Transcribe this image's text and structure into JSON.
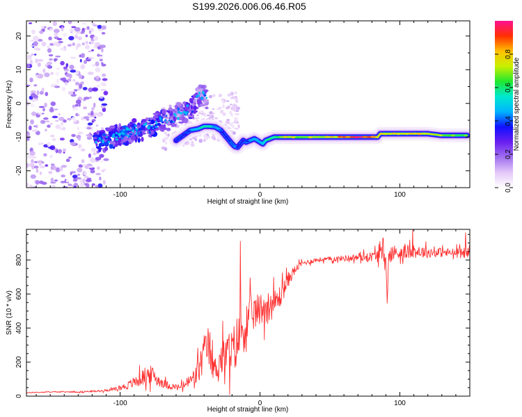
{
  "figure": {
    "title": "S199.2026.006.06.46.R05"
  },
  "chart_data": [
    {
      "type": "heatmap",
      "title": "S199.2026.006.06.46.R05",
      "xlabel": "Height of straight line (km)",
      "ylabel": "Frequency (Hz)",
      "xlim": [
        -167,
        150
      ],
      "ylim": [
        -25,
        24.5
      ],
      "x_ticks": [
        -100,
        0,
        100
      ],
      "y_ticks": [
        -20,
        -10,
        0,
        10,
        20
      ],
      "colorbar": {
        "label": "Normalized spectral amplitude",
        "range": [
          0,
          1
        ],
        "ticks": [
          0.0,
          0.2,
          0.4,
          0.6,
          0.8
        ],
        "colormap": [
          "#ffffff",
          "#e4c8f8",
          "#a070f0",
          "#6a1ff0",
          "#1010ff",
          "#00b4ff",
          "#00e8d0",
          "#20e830",
          "#c8f000",
          "#ffc000",
          "#ff3000",
          "#ff1090"
        ]
      },
      "ridge": {
        "x": [
          -60,
          -55,
          -50,
          -44,
          -40,
          -36,
          -32,
          -28,
          -25,
          -22,
          -20,
          -18,
          -16,
          -14,
          -12,
          -10,
          -7,
          -4,
          0,
          2,
          4,
          7,
          10,
          14,
          20,
          30,
          40,
          50,
          60,
          70,
          80,
          84,
          86,
          90,
          95,
          100,
          110,
          120,
          130,
          140,
          148
        ],
        "freq_hz": [
          -11,
          -9.5,
          -8,
          -7.5,
          -6.8,
          -6.8,
          -7,
          -8,
          -9.5,
          -11,
          -12,
          -12.8,
          -13,
          -12,
          -11,
          -11.5,
          -11,
          -10.5,
          -11.5,
          -12,
          -11,
          -10.5,
          -10,
          -10,
          -10,
          -10,
          -10,
          -10,
          -10,
          -10,
          -10,
          -10,
          -9,
          -9,
          -9,
          -9,
          -9,
          -9,
          -9.5,
          -9.5,
          -9.5
        ],
        "amplitude": [
          0.35,
          0.35,
          0.4,
          0.5,
          0.55,
          0.55,
          0.45,
          0.4,
          0.35,
          0.35,
          0.4,
          0.4,
          0.35,
          0.35,
          0.35,
          0.4,
          0.45,
          0.45,
          0.45,
          0.5,
          0.55,
          0.6,
          0.6,
          0.65,
          0.75,
          0.7,
          0.75,
          0.75,
          0.85,
          0.95,
          0.9,
          0.8,
          0.75,
          0.7,
          0.72,
          0.75,
          0.8,
          0.72,
          0.7,
          0.68,
          0.65
        ]
      },
      "scattered_band": {
        "x": [
          -118,
          -114,
          -110,
          -106,
          -102,
          -98,
          -94,
          -90,
          -86,
          -82,
          -78,
          -74,
          -70,
          -66,
          -62,
          -58,
          -54,
          -48,
          -44,
          -40,
          -38
        ],
        "freq_hz": [
          -11,
          -11,
          -10.5,
          -10,
          -9.5,
          -9,
          -9,
          -8,
          -8,
          -7.5,
          -7,
          -6,
          -5,
          -5,
          -4,
          -3,
          -2.5,
          -1.5,
          2,
          2.5,
          0
        ],
        "amplitude": [
          0.3,
          0.35,
          0.35,
          0.3,
          0.3,
          0.32,
          0.3,
          0.28,
          0.3,
          0.3,
          0.3,
          0.3,
          0.28,
          0.25,
          0.22,
          0.2,
          0.25,
          0.25,
          0.2,
          0.2,
          0.18
        ]
      },
      "diffuse_noise": {
        "x_range": [
          -167,
          -110
        ],
        "freq_range_hz": [
          -25,
          24.5
        ],
        "amplitude_max": 0.25
      }
    },
    {
      "type": "line",
      "title": "",
      "xlabel": "Height of straight line (km)",
      "ylabel": "SNR (10 * v/v)",
      "xlim": [
        -167,
        150
      ],
      "ylim": [
        0,
        980
      ],
      "x_ticks": [
        -100,
        0,
        100
      ],
      "y_ticks": [
        0,
        200,
        400,
        600,
        800
      ],
      "series": [
        {
          "name": "SNR",
          "color": "#ff3030",
          "x": [
            -167,
            -150,
            -130,
            -115,
            -105,
            -95,
            -88,
            -80,
            -76,
            -72,
            -68,
            -64,
            -60,
            -56,
            -52,
            -48,
            -44,
            -40,
            -37,
            -35,
            -32,
            -28,
            -24,
            -20,
            -16,
            -13,
            -10,
            -6,
            -2,
            2,
            6,
            10,
            14,
            18,
            22,
            26,
            30,
            35,
            40,
            50,
            60,
            70,
            80,
            84,
            88,
            90,
            91,
            92,
            94,
            100,
            110,
            120,
            130,
            140,
            150
          ],
          "y": [
            20,
            25,
            25,
            30,
            40,
            60,
            90,
            130,
            120,
            90,
            70,
            60,
            50,
            55,
            80,
            100,
            150,
            250,
            300,
            200,
            160,
            220,
            240,
            260,
            330,
            380,
            420,
            480,
            500,
            520,
            530,
            540,
            580,
            650,
            710,
            750,
            780,
            790,
            800,
            805,
            810,
            815,
            820,
            830,
            835,
            830,
            530,
            820,
            840,
            845,
            850,
            845,
            845,
            840,
            845
          ],
          "noise_amplitude": [
            5,
            5,
            8,
            10,
            15,
            40,
            70,
            100,
            90,
            60,
            45,
            40,
            30,
            40,
            60,
            90,
            160,
            200,
            200,
            150,
            130,
            200,
            220,
            240,
            280,
            260,
            250,
            200,
            180,
            180,
            160,
            150,
            130,
            100,
            70,
            40,
            30,
            25,
            25,
            25,
            30,
            40,
            50,
            80,
            90,
            80,
            0,
            80,
            90,
            80,
            70,
            60,
            50,
            50,
            50
          ],
          "spikes": [
            {
              "x": -14,
              "y": 910
            },
            {
              "x": 109,
              "y": 980
            },
            {
              "x": 147,
              "y": 960
            }
          ]
        }
      ]
    }
  ]
}
